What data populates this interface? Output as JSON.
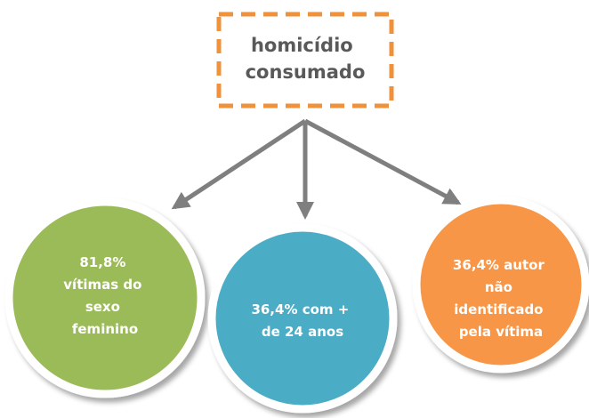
{
  "root": {
    "lines": [
      "homicídio",
      "consumado"
    ]
  },
  "nodes": [
    {
      "lines": [
        "81,8%",
        "vítimas do",
        "sexo",
        "feminino"
      ]
    },
    {
      "lines": [
        "36,4% com +",
        "de 24 anos"
      ]
    },
    {
      "lines": [
        "36,4% autor",
        "não",
        "identificado",
        "pela vítima"
      ]
    }
  ]
}
